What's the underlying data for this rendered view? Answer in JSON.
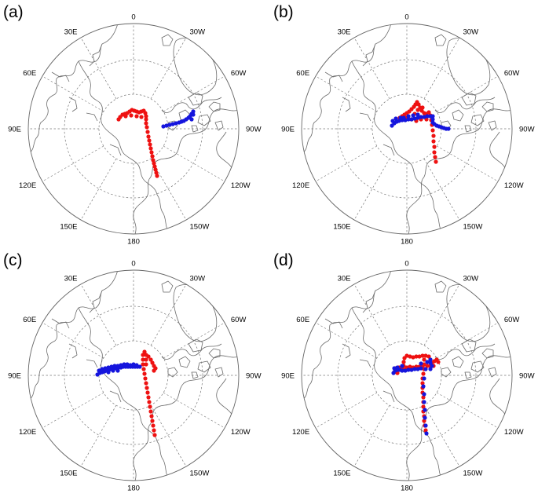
{
  "colors": {
    "red_track": "#ee1111",
    "blue_track": "#1515dd",
    "coast": "#6a6a6a",
    "grid": "#777777"
  },
  "lon_labels": [
    "0",
    "30E",
    "30W",
    "60E",
    "60W",
    "90E",
    "90W",
    "120E",
    "120W",
    "150E",
    "150W",
    "180"
  ],
  "panels": [
    {
      "letter": "(a)",
      "red_path": [
        [
          -19,
          -12
        ],
        [
          -17,
          -15
        ],
        [
          -14,
          -18
        ],
        [
          -11,
          -19
        ],
        [
          -8,
          -20
        ],
        [
          -5,
          -22
        ],
        [
          -2,
          -24
        ],
        [
          1,
          -23
        ],
        [
          4,
          -22
        ],
        [
          7,
          -21
        ],
        [
          10,
          -22
        ],
        [
          13,
          -23
        ],
        [
          15,
          -20
        ],
        [
          16,
          -16
        ],
        [
          16,
          -12
        ],
        [
          16,
          -7
        ],
        [
          17,
          -2
        ],
        [
          18,
          4
        ],
        [
          19,
          10
        ],
        [
          20,
          15
        ],
        [
          21,
          20
        ],
        [
          22,
          25
        ],
        [
          23,
          30
        ],
        [
          24,
          35
        ],
        [
          25,
          40
        ],
        [
          26,
          44
        ],
        [
          27,
          48
        ],
        [
          28,
          52
        ],
        [
          29,
          56
        ],
        [
          30,
          60
        ]
      ],
      "red_extra": [
        [
          -10,
          -16
        ],
        [
          -3,
          -17
        ],
        [
          4,
          -16
        ],
        [
          10,
          -15
        ]
      ],
      "blue_path": [
        [
          38,
          -3
        ],
        [
          42,
          -4
        ],
        [
          46,
          -5
        ],
        [
          50,
          -6
        ],
        [
          54,
          -7
        ],
        [
          58,
          -8
        ],
        [
          61,
          -9
        ],
        [
          64,
          -10
        ],
        [
          67,
          -12
        ],
        [
          70,
          -14
        ],
        [
          72,
          -16
        ],
        [
          74,
          -19
        ],
        [
          76,
          -22
        ],
        [
          76,
          -18
        ],
        [
          74,
          -12
        ]
      ]
    },
    {
      "letter": "(b)",
      "red_path": [
        [
          -9,
          -14
        ],
        [
          -6,
          -16
        ],
        [
          -3,
          -18
        ],
        [
          0,
          -20
        ],
        [
          3,
          -22
        ],
        [
          6,
          -25
        ],
        [
          9,
          -28
        ],
        [
          11,
          -31
        ],
        [
          13,
          -34
        ],
        [
          15,
          -31
        ],
        [
          17,
          -27
        ],
        [
          19,
          -23
        ],
        [
          22,
          -20
        ],
        [
          25,
          -19
        ],
        [
          28,
          -21
        ],
        [
          30,
          -17
        ],
        [
          31,
          -11
        ],
        [
          32,
          -5
        ],
        [
          33,
          2
        ],
        [
          34,
          9
        ],
        [
          34,
          16
        ],
        [
          35,
          23
        ],
        [
          35,
          30
        ],
        [
          36,
          36
        ],
        [
          37,
          42
        ]
      ],
      "red_extra": [
        [
          0,
          -14
        ],
        [
          6,
          -12
        ],
        [
          12,
          -10
        ],
        [
          18,
          -12
        ],
        [
          25,
          -12
        ],
        [
          10,
          -19
        ],
        [
          14,
          -24
        ],
        [
          20,
          -27
        ]
      ],
      "blue_path": [
        [
          -19,
          -4
        ],
        [
          -16,
          -7
        ],
        [
          -13,
          -9
        ],
        [
          -10,
          -10
        ],
        [
          -6,
          -11
        ],
        [
          -2,
          -11
        ],
        [
          2,
          -12
        ],
        [
          6,
          -12
        ],
        [
          10,
          -13
        ],
        [
          14,
          -14
        ],
        [
          18,
          -15
        ],
        [
          22,
          -15
        ],
        [
          26,
          -16
        ],
        [
          30,
          -16
        ],
        [
          33,
          -16
        ],
        [
          33,
          -12
        ],
        [
          33,
          -8
        ],
        [
          35,
          -6
        ],
        [
          38,
          -4
        ],
        [
          41,
          -3
        ],
        [
          44,
          -2
        ],
        [
          47,
          -1
        ],
        [
          50,
          0
        ],
        [
          53,
          0
        ]
      ],
      "blue_extra": [
        [
          -18,
          -10
        ],
        [
          -14,
          -13
        ],
        [
          -8,
          -14
        ],
        [
          -4,
          -14
        ],
        [
          2,
          -16
        ],
        [
          8,
          -17
        ],
        [
          14,
          -18
        ]
      ]
    },
    {
      "letter": "(c)",
      "red_path": [
        [
          12,
          -26
        ],
        [
          12,
          -20
        ],
        [
          12,
          -14
        ],
        [
          13,
          -8
        ],
        [
          14,
          -2
        ],
        [
          15,
          4
        ],
        [
          16,
          10
        ],
        [
          17,
          16
        ],
        [
          18,
          22
        ],
        [
          19,
          28
        ],
        [
          20,
          34
        ],
        [
          21,
          40
        ],
        [
          22,
          46
        ],
        [
          23,
          52
        ],
        [
          24,
          58
        ],
        [
          25,
          64
        ],
        [
          26,
          70
        ],
        [
          27,
          76
        ]
      ],
      "red_extra": [
        [
          14,
          -30
        ],
        [
          16,
          -26
        ],
        [
          16,
          -20
        ],
        [
          16,
          -14
        ],
        [
          19,
          -24
        ],
        [
          22,
          -20
        ],
        [
          24,
          -16
        ],
        [
          26,
          -12
        ],
        [
          26,
          -6
        ],
        [
          28,
          -9
        ]
      ],
      "blue_path": [
        [
          -46,
          -1
        ],
        [
          -43,
          -3
        ],
        [
          -40,
          -4
        ],
        [
          -37,
          -5
        ],
        [
          -34,
          -6
        ],
        [
          -31,
          -7
        ],
        [
          -28,
          -8
        ],
        [
          -25,
          -9
        ],
        [
          -22,
          -9
        ],
        [
          -19,
          -10
        ],
        [
          -16,
          -10
        ],
        [
          -13,
          -11
        ],
        [
          -10,
          -11
        ],
        [
          -7,
          -11
        ],
        [
          -4,
          -11
        ],
        [
          -1,
          -11
        ],
        [
          2,
          -11
        ],
        [
          5,
          -11
        ],
        [
          8,
          -11
        ]
      ],
      "blue_extra": [
        [
          -44,
          -6
        ],
        [
          -40,
          -8
        ],
        [
          -36,
          -9
        ],
        [
          -32,
          -10
        ],
        [
          -28,
          -11
        ],
        [
          -24,
          -12
        ],
        [
          -20,
          -12
        ],
        [
          -16,
          -13
        ],
        [
          -12,
          -14
        ],
        [
          -8,
          -14
        ],
        [
          -4,
          -13
        ],
        [
          0,
          -14
        ],
        [
          4,
          -13
        ],
        [
          -32,
          -4
        ],
        [
          -26,
          -6
        ],
        [
          -20,
          -6
        ]
      ]
    },
    {
      "letter": "(d)",
      "red_path": [
        [
          -4,
          -7
        ],
        [
          -4,
          -12
        ],
        [
          -4,
          -17
        ],
        [
          -3,
          -22
        ],
        [
          0,
          -25
        ],
        [
          4,
          -24
        ],
        [
          8,
          -23
        ],
        [
          12,
          -24
        ],
        [
          16,
          -24
        ],
        [
          20,
          -25
        ],
        [
          24,
          -25
        ],
        [
          28,
          -24
        ],
        [
          30,
          -20
        ],
        [
          32,
          -16
        ],
        [
          35,
          -18
        ],
        [
          38,
          -20
        ],
        [
          40,
          -17
        ],
        [
          22,
          -20
        ],
        [
          22,
          -14
        ],
        [
          22,
          -8
        ],
        [
          21,
          -2
        ],
        [
          20,
          4
        ],
        [
          20,
          10
        ],
        [
          20,
          16
        ],
        [
          20,
          22
        ],
        [
          21,
          28
        ],
        [
          21,
          34
        ],
        [
          21,
          40
        ],
        [
          21,
          46
        ],
        [
          22,
          52
        ],
        [
          22,
          58
        ],
        [
          23,
          64
        ],
        [
          24,
          70
        ]
      ],
      "red_extra": [
        [
          -14,
          -9
        ],
        [
          -10,
          -10
        ],
        [
          -6,
          -9
        ],
        [
          0,
          -10
        ],
        [
          4,
          -11
        ],
        [
          8,
          -10
        ],
        [
          12,
          -11
        ],
        [
          16,
          -11
        ],
        [
          20,
          -11
        ],
        [
          26,
          -12
        ],
        [
          30,
          -12
        ],
        [
          34,
          -12
        ],
        [
          -16,
          -4
        ],
        [
          -12,
          -3
        ]
      ],
      "blue_path": [
        [
          -17,
          -3
        ],
        [
          -15,
          -6
        ],
        [
          -12,
          -7
        ],
        [
          -9,
          -7
        ],
        [
          -6,
          -6
        ],
        [
          -2,
          -6
        ],
        [
          2,
          -7
        ],
        [
          6,
          -7
        ],
        [
          10,
          -8
        ],
        [
          14,
          -8
        ],
        [
          18,
          -9
        ],
        [
          24,
          -8
        ],
        [
          30,
          -8
        ],
        [
          32,
          -12
        ],
        [
          30,
          -16
        ],
        [
          22,
          4
        ],
        [
          21,
          14
        ],
        [
          22,
          24
        ],
        [
          22,
          34
        ],
        [
          23,
          44
        ],
        [
          23,
          54
        ],
        [
          24,
          64
        ],
        [
          25,
          74
        ]
      ],
      "blue_extra": [
        [
          -16,
          -9
        ],
        [
          -12,
          -10
        ],
        [
          -6,
          -12
        ],
        [
          18,
          -15
        ],
        [
          26,
          -17
        ],
        [
          30,
          -20
        ]
      ]
    }
  ]
}
